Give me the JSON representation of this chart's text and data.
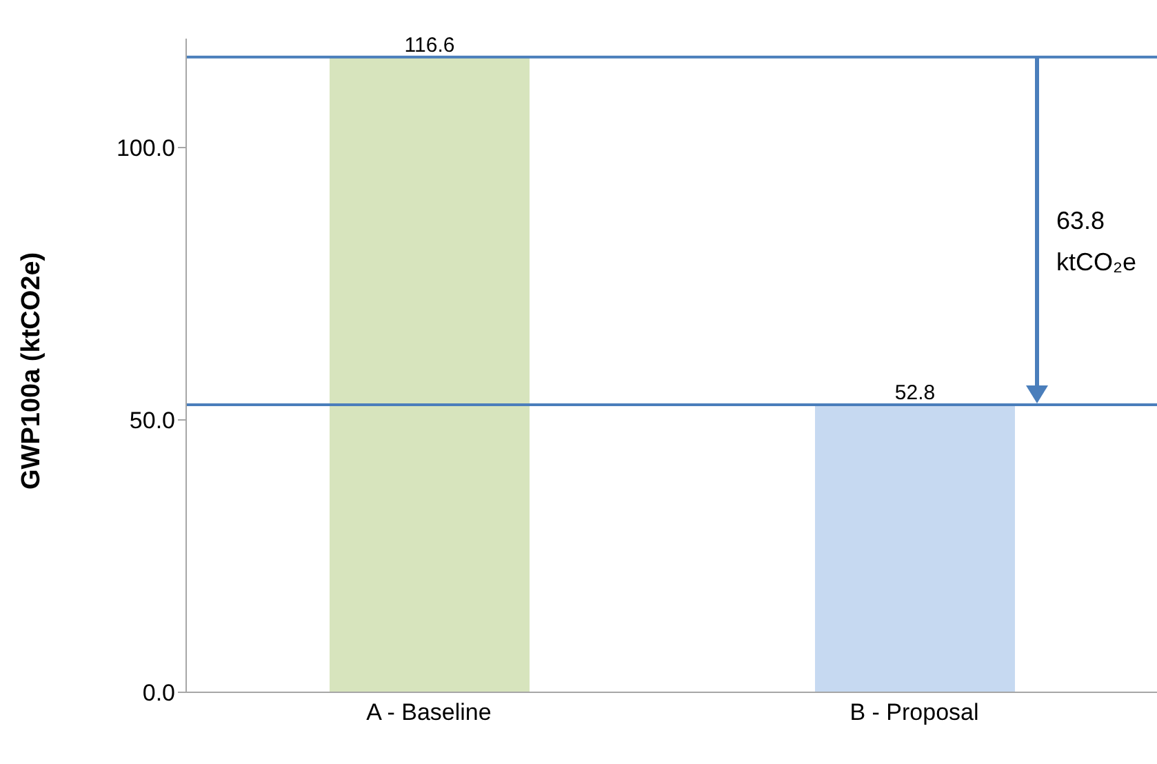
{
  "chart_data": {
    "type": "bar",
    "ylabel": "GWP100a (ktCO2e)",
    "categories": [
      "A - Baseline",
      "B - Proposal"
    ],
    "values": [
      116.6,
      52.8
    ],
    "colors": [
      "#d7e4bd",
      "#c6d9f1"
    ],
    "ylim": [
      0,
      120
    ],
    "yticks": [
      {
        "value": 0,
        "label": "0.0"
      },
      {
        "value": 50,
        "label": "50.0"
      },
      {
        "value": 100,
        "label": "100.0"
      }
    ],
    "data_labels": true,
    "grid": false,
    "ref_lines": [
      {
        "axis": "y",
        "value": 116.6,
        "color": "#4a7ebb"
      },
      {
        "axis": "y",
        "value": 52.8,
        "color": "#4a7ebb"
      }
    ],
    "annotations": [
      "63.8 ktCO₂e"
    ]
  }
}
